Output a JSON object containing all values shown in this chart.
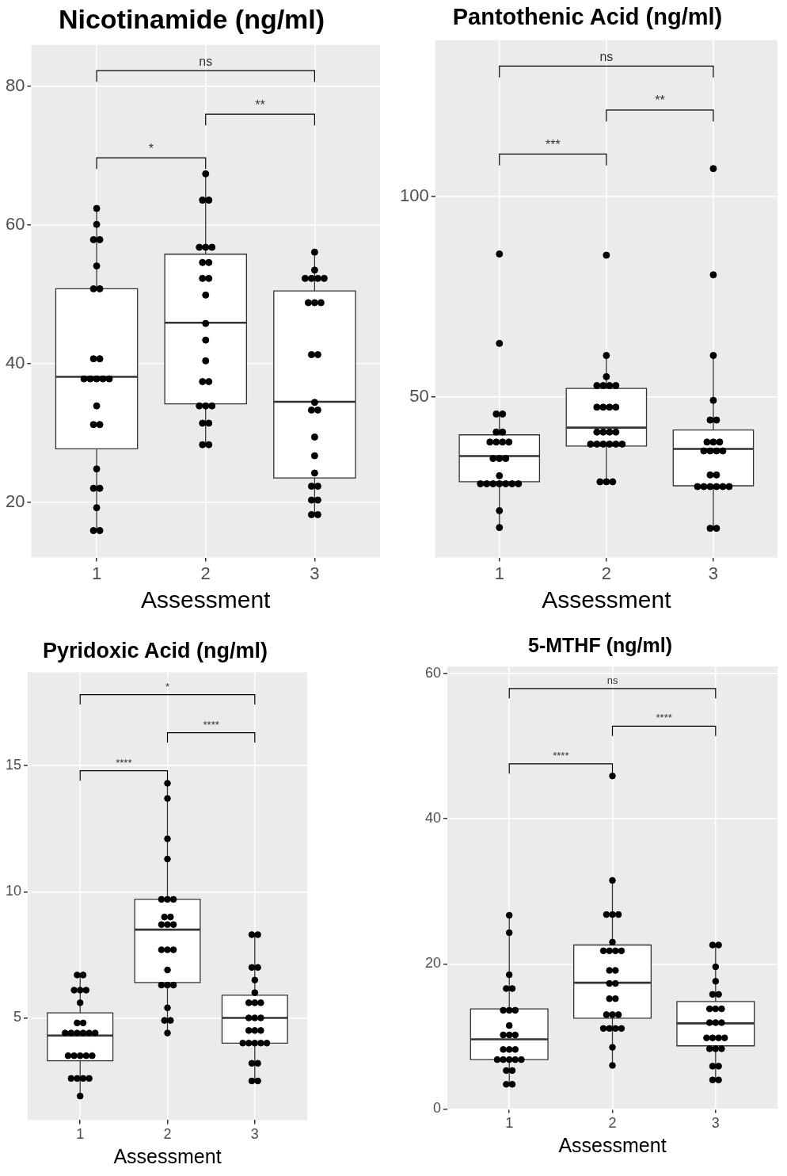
{
  "chart_data": [
    {
      "type": "box",
      "title": "Nicotinamide (ng/ml)",
      "xlabel": "Assessment",
      "categories": [
        "1",
        "2",
        "3"
      ],
      "ylim": [
        12,
        86
      ],
      "yticks": [
        20,
        40,
        60,
        80
      ],
      "grid": true,
      "annotations": [
        "ns",
        "**",
        "*"
      ],
      "boxes": [
        {
          "low": 15.9,
          "q1": 27.7,
          "median": 38.1,
          "q3": 50.8,
          "high": 62.4
        },
        {
          "low": 28.3,
          "q1": 34.2,
          "median": 45.9,
          "q3": 55.8,
          "high": 67.4
        },
        {
          "low": 18.2,
          "q1": 23.5,
          "median": 34.5,
          "q3": 50.5,
          "high": 56.1
        }
      ],
      "series": [
        {
          "type": "scatter",
          "color": "#000000",
          "x": [
            "1",
            "1",
            "1",
            "1",
            "1",
            "1",
            "1",
            "1",
            "1",
            "1",
            "1",
            "1",
            "1",
            "1",
            "1",
            "1",
            "1",
            "1",
            "1",
            "1",
            "1",
            "1",
            "1"
          ],
          "values": [
            62.4,
            60.1,
            57.9,
            57.9,
            54.1,
            50.8,
            50.8,
            40.7,
            40.7,
            37.8,
            37.8,
            37.8,
            37.8,
            37.8,
            33.9,
            31.2,
            31.2,
            24.8,
            22.0,
            22.0,
            19.2,
            15.9,
            15.9
          ]
        },
        {
          "type": "scatter",
          "color": "#000000",
          "x": [
            "2",
            "2",
            "2",
            "2",
            "2",
            "2",
            "2",
            "2",
            "2",
            "2",
            "2",
            "2",
            "2",
            "2",
            "2",
            "2",
            "2",
            "2",
            "2",
            "2",
            "2",
            "2",
            "2"
          ],
          "values": [
            67.4,
            63.6,
            63.6,
            56.8,
            56.8,
            56.8,
            54.6,
            54.6,
            52.3,
            52.3,
            49.9,
            45.8,
            43.4,
            40.4,
            37.4,
            37.4,
            33.9,
            33.9,
            33.9,
            31.4,
            31.4,
            28.3,
            28.3
          ]
        },
        {
          "type": "scatter",
          "color": "#000000",
          "x": [
            "3",
            "3",
            "3",
            "3",
            "3",
            "3",
            "3",
            "3",
            "3",
            "3",
            "3",
            "3",
            "3",
            "3",
            "3",
            "3",
            "3",
            "3",
            "3",
            "3",
            "3",
            "3",
            "3"
          ],
          "values": [
            56.1,
            53.5,
            52.3,
            52.3,
            52.3,
            52.3,
            48.8,
            48.8,
            48.8,
            41.3,
            41.3,
            34.4,
            33.3,
            33.3,
            29.4,
            26.7,
            24.2,
            22.3,
            22.3,
            20.3,
            20.3,
            18.2,
            18.2
          ]
        }
      ]
    },
    {
      "type": "box",
      "title": "Pantothenic Acid (ng/ml)",
      "xlabel": "Assessment",
      "categories": [
        "1",
        "2",
        "3"
      ],
      "ylim": [
        10,
        139
      ],
      "yticks": [
        50,
        100
      ],
      "grid": true,
      "annotations": [
        "ns",
        "**",
        "***"
      ],
      "boxes": [
        {
          "low": 17.5,
          "q1": 28.9,
          "median": 35.3,
          "q3": 40.6,
          "high": 45.8
        },
        {
          "low": 28.9,
          "q1": 37.8,
          "median": 42.4,
          "q3": 52.2,
          "high": 60.4
        },
        {
          "low": 17.3,
          "q1": 27.9,
          "median": 37.1,
          "q3": 41.8,
          "high": 60.4
        }
      ],
      "series": [
        {
          "type": "scatter",
          "color": "#000000",
          "x": [
            "1",
            "1",
            "1",
            "1",
            "1",
            "1",
            "1",
            "1",
            "1",
            "1",
            "1",
            "1",
            "1",
            "1",
            "1",
            "1",
            "1",
            "1",
            "1",
            "1",
            "1",
            "1",
            "1"
          ],
          "values": [
            85.7,
            63.4,
            45.8,
            45.8,
            41.3,
            41.3,
            38.8,
            38.8,
            38.8,
            38.8,
            34.7,
            34.7,
            34.7,
            30.4,
            28.4,
            28.4,
            28.4,
            28.4,
            28.4,
            28.4,
            28.4,
            21.7,
            17.5
          ]
        },
        {
          "type": "scatter",
          "color": "#000000",
          "x": [
            "2",
            "2",
            "2",
            "2",
            "2",
            "2",
            "2",
            "2",
            "2",
            "2",
            "2",
            "2",
            "2",
            "2",
            "2",
            "2",
            "2",
            "2",
            "2",
            "2",
            "2",
            "2",
            "2",
            "2"
          ],
          "values": [
            85.4,
            60.4,
            55.1,
            52.9,
            52.9,
            52.9,
            52.9,
            47.5,
            47.5,
            47.5,
            47.5,
            41.3,
            41.3,
            41.3,
            41.3,
            38.3,
            38.3,
            38.3,
            38.3,
            38.3,
            38.3,
            28.9,
            28.9,
            28.9
          ]
        },
        {
          "type": "scatter",
          "color": "#000000",
          "x": [
            "3",
            "3",
            "3",
            "3",
            "3",
            "3",
            "3",
            "3",
            "3",
            "3",
            "3",
            "3",
            "3",
            "3",
            "3",
            "3",
            "3",
            "3",
            "3",
            "3",
            "3",
            "3",
            "3"
          ],
          "values": [
            107.0,
            80.5,
            60.4,
            49.2,
            44.3,
            44.3,
            38.8,
            38.8,
            38.8,
            36.6,
            36.6,
            36.6,
            36.6,
            30.6,
            30.6,
            27.7,
            27.7,
            27.7,
            27.7,
            27.7,
            27.7,
            17.3,
            17.3
          ]
        }
      ]
    },
    {
      "type": "box",
      "title": "Pyridoxic Acid (ng/ml)",
      "xlabel": "Assessment",
      "categories": [
        "1",
        "2",
        "3"
      ],
      "ylim": [
        0.95,
        18.7
      ],
      "yticks": [
        5,
        10,
        15
      ],
      "grid": true,
      "annotations": [
        "*",
        "****",
        "****"
      ],
      "boxes": [
        {
          "low": 1.9,
          "q1": 3.3,
          "median": 4.3,
          "q3": 5.2,
          "high": 6.7
        },
        {
          "low": 4.4,
          "q1": 6.4,
          "median": 8.5,
          "q3": 9.7,
          "high": 14.3
        },
        {
          "low": 2.5,
          "q1": 4.0,
          "median": 5.0,
          "q3": 5.9,
          "high": 8.3
        }
      ],
      "series": [
        {
          "type": "scatter",
          "color": "#000000",
          "x": [
            "1",
            "1",
            "1",
            "1",
            "1",
            "1",
            "1",
            "1",
            "1",
            "1",
            "1",
            "1",
            "1",
            "1",
            "1",
            "1",
            "1",
            "1",
            "1",
            "1",
            "1",
            "1",
            "1",
            "1"
          ],
          "values": [
            6.7,
            6.7,
            6.1,
            6.1,
            6.1,
            5.6,
            4.8,
            4.8,
            4.4,
            4.4,
            4.4,
            4.4,
            4.4,
            4.4,
            3.5,
            3.5,
            3.5,
            3.5,
            3.5,
            2.6,
            2.6,
            2.6,
            2.6,
            1.9
          ]
        },
        {
          "type": "scatter",
          "color": "#000000",
          "x": [
            "2",
            "2",
            "2",
            "2",
            "2",
            "2",
            "2",
            "2",
            "2",
            "2",
            "2",
            "2",
            "2",
            "2",
            "2",
            "2",
            "2",
            "2",
            "2",
            "2",
            "2",
            "2",
            "2"
          ],
          "values": [
            14.3,
            13.7,
            12.1,
            11.3,
            9.7,
            9.7,
            9.7,
            9.0,
            9.0,
            8.7,
            8.7,
            8.7,
            7.7,
            7.7,
            7.7,
            6.9,
            6.3,
            6.3,
            6.3,
            5.4,
            4.9,
            4.9,
            4.4
          ]
        },
        {
          "type": "scatter",
          "color": "#000000",
          "x": [
            "3",
            "3",
            "3",
            "3",
            "3",
            "3",
            "3",
            "3",
            "3",
            "3",
            "3",
            "3",
            "3",
            "3",
            "3",
            "3",
            "3",
            "3",
            "3",
            "3",
            "3",
            "3",
            "3",
            "3"
          ],
          "values": [
            8.3,
            8.3,
            7.0,
            7.0,
            6.5,
            6.0,
            5.6,
            5.6,
            5.6,
            5.0,
            5.0,
            5.0,
            4.5,
            4.5,
            4.5,
            4.0,
            4.0,
            4.0,
            4.0,
            4.0,
            3.2,
            3.2,
            2.5,
            2.5
          ]
        }
      ]
    },
    {
      "type": "box",
      "title": "5-MTHF (ng/ml)",
      "xlabel": "Assessment",
      "categories": [
        "1",
        "2",
        "3"
      ],
      "ylim": [
        0,
        61
      ],
      "yticks": [
        0,
        20,
        40,
        60
      ],
      "grid": true,
      "annotations": [
        "ns",
        "****",
        "****"
      ],
      "boxes": [
        {
          "low": 3.4,
          "q1": 6.8,
          "median": 9.6,
          "q3": 13.8,
          "high": 26.7
        },
        {
          "low": 6.0,
          "q1": 12.5,
          "median": 17.4,
          "q3": 22.6,
          "high": 31.5
        },
        {
          "low": 4.0,
          "q1": 8.7,
          "median": 11.8,
          "q3": 14.8,
          "high": 22.6
        }
      ],
      "series": [
        {
          "type": "scatter",
          "color": "#000000",
          "x": [
            "1",
            "1",
            "1",
            "1",
            "1",
            "1",
            "1",
            "1",
            "1",
            "1",
            "1",
            "1",
            "1",
            "1",
            "1",
            "1",
            "1",
            "1",
            "1",
            "1",
            "1",
            "1",
            "1",
            "1"
          ],
          "values": [
            26.7,
            24.3,
            18.5,
            16.6,
            16.6,
            13.6,
            13.6,
            13.6,
            11.5,
            10.2,
            10.2,
            10.2,
            8.2,
            8.2,
            8.2,
            6.8,
            6.8,
            6.8,
            6.8,
            6.8,
            5.3,
            5.3,
            3.4,
            3.4
          ]
        },
        {
          "type": "scatter",
          "color": "#000000",
          "x": [
            "2",
            "2",
            "2",
            "2",
            "2",
            "2",
            "2",
            "2",
            "2",
            "2",
            "2",
            "2",
            "2",
            "2",
            "2",
            "2",
            "2",
            "2",
            "2",
            "2",
            "2",
            "2",
            "2",
            "2",
            "2"
          ],
          "values": [
            45.9,
            31.5,
            26.8,
            26.8,
            26.8,
            23.0,
            21.8,
            21.8,
            21.8,
            21.8,
            19.1,
            19.1,
            17.3,
            17.3,
            15.2,
            15.2,
            13.0,
            13.0,
            13.0,
            11.1,
            11.1,
            11.1,
            11.1,
            8.5,
            6.0
          ]
        },
        {
          "type": "scatter",
          "color": "#000000",
          "x": [
            "3",
            "3",
            "3",
            "3",
            "3",
            "3",
            "3",
            "3",
            "3",
            "3",
            "3",
            "3",
            "3",
            "3",
            "3",
            "3",
            "3",
            "3",
            "3",
            "3",
            "3",
            "3",
            "3"
          ],
          "values": [
            22.6,
            22.6,
            19.6,
            17.6,
            15.8,
            15.8,
            13.8,
            13.8,
            13.8,
            11.9,
            11.9,
            11.9,
            9.8,
            9.8,
            9.8,
            9.8,
            8.3,
            8.3,
            8.3,
            5.9,
            5.9,
            4.0,
            4.0
          ]
        }
      ]
    }
  ]
}
